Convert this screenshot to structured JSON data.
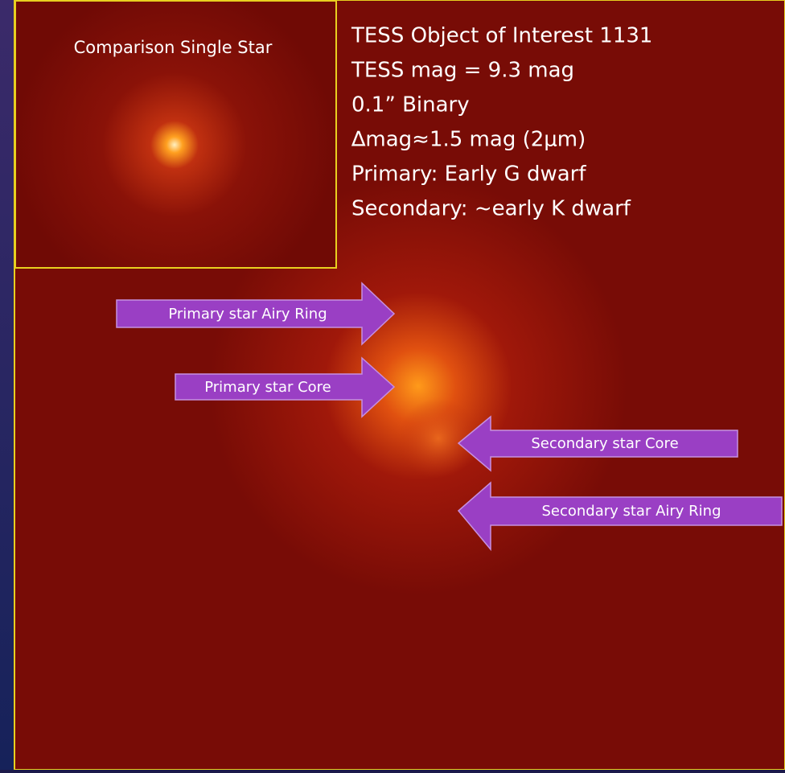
{
  "inset": {
    "title": "Comparison Single Star"
  },
  "info": {
    "lines": [
      "TESS Object of Interest 1131",
      "TESS mag = 9.3 mag",
      "0.1” Binary",
      "∆mag≈1.5 mag (2μm)",
      "Primary: Early G dwarf",
      "Secondary: ~early K dwarf"
    ]
  },
  "arrows": {
    "labels": [
      "Primary star Airy Ring",
      "Primary star Core",
      "Secondary star Core",
      "Secondary star Airy Ring"
    ]
  }
}
